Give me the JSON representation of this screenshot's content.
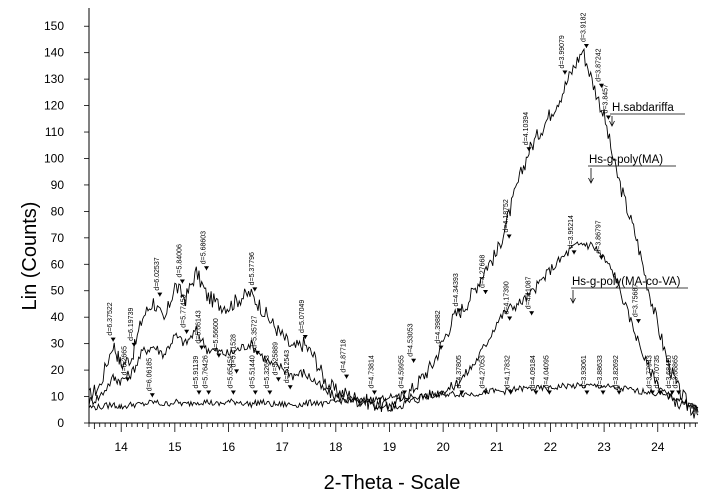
{
  "chart_data": {
    "type": "line",
    "xlabel": "2-Theta - Scale",
    "ylabel": "Lin (Counts)",
    "xlim": [
      13.4,
      24.75
    ],
    "ylim": [
      0,
      155
    ],
    "x_ticks": [
      14,
      15,
      16,
      17,
      18,
      19,
      20,
      21,
      22,
      23,
      24
    ],
    "y_ticks": [
      0,
      10,
      20,
      30,
      40,
      50,
      60,
      70,
      80,
      90,
      100,
      110,
      120,
      130,
      140,
      150
    ],
    "series": [
      {
        "name": "H.sabdariffa",
        "color": "#000000",
        "x": [
          13.4,
          13.6,
          13.85,
          14.0,
          14.2,
          14.4,
          14.6,
          14.8,
          15.0,
          15.2,
          15.4,
          15.6,
          15.8,
          16.0,
          16.2,
          16.4,
          16.6,
          16.8,
          17.0,
          17.2,
          17.4,
          17.6,
          17.8,
          18.0,
          18.2,
          18.4,
          18.6,
          18.8,
          19.0,
          19.2,
          19.4,
          19.6,
          19.8,
          20.0,
          20.2,
          20.4,
          20.6,
          20.8,
          21.0,
          21.2,
          21.4,
          21.6,
          21.8,
          22.0,
          22.2,
          22.4,
          22.6,
          22.8,
          23.0,
          23.2,
          23.4,
          23.6,
          23.8,
          24.0,
          24.2,
          24.4,
          24.6,
          24.75
        ],
        "y": [
          10,
          14,
          30,
          22,
          25,
          40,
          46,
          38,
          52,
          47,
          57,
          48,
          45,
          44,
          47,
          49,
          44,
          38,
          33,
          28,
          30,
          25,
          16,
          12,
          11,
          9,
          8,
          7,
          6,
          9,
          12,
          17,
          22,
          31,
          40,
          44,
          51,
          59,
          64,
          77,
          91,
          103,
          110,
          117,
          124,
          133,
          141,
          128,
          116,
          97,
          83,
          70,
          53,
          37,
          22,
          12,
          6,
          3
        ]
      },
      {
        "name": "Hs-g-poly(MA)",
        "color": "#000000",
        "x": [
          13.4,
          13.6,
          13.85,
          14.0,
          14.2,
          14.4,
          14.6,
          14.8,
          15.0,
          15.2,
          15.4,
          15.6,
          15.8,
          16.0,
          16.2,
          16.4,
          16.6,
          16.8,
          17.0,
          17.2,
          17.4,
          17.6,
          17.8,
          18.0,
          18.2,
          18.4,
          18.6,
          18.8,
          19.0,
          19.2,
          19.4,
          19.6,
          19.8,
          20.0,
          20.2,
          20.4,
          20.6,
          20.8,
          21.0,
          21.2,
          21.4,
          21.6,
          21.8,
          22.0,
          22.2,
          22.4,
          22.6,
          22.8,
          23.0,
          23.2,
          23.4,
          23.6,
          23.8,
          24.0,
          24.2,
          24.4,
          24.6,
          24.75
        ],
        "y": [
          8,
          10,
          17,
          16,
          19,
          27,
          29,
          26,
          33,
          30,
          35,
          28,
          27,
          26,
          28,
          30,
          26,
          22,
          21,
          18,
          19,
          16,
          12,
          10,
          9,
          8,
          7,
          7,
          6,
          7,
          8,
          10,
          11,
          12,
          14,
          18,
          23,
          30,
          38,
          43,
          45,
          48,
          53,
          58,
          62,
          66,
          68,
          67,
          62,
          56,
          44,
          33,
          22,
          15,
          10,
          7,
          6,
          4
        ]
      },
      {
        "name": "Hs-g-poly(MA-co-VA)",
        "color": "#000000",
        "x": [
          13.4,
          13.6,
          13.85,
          14.0,
          14.2,
          14.4,
          14.6,
          14.8,
          15.0,
          15.2,
          15.4,
          15.6,
          15.8,
          16.0,
          16.2,
          16.4,
          16.6,
          16.8,
          17.0,
          17.2,
          17.4,
          17.6,
          17.8,
          18.0,
          18.2,
          18.4,
          18.6,
          18.8,
          19.0,
          19.2,
          19.4,
          19.6,
          19.8,
          20.0,
          20.2,
          20.4,
          20.6,
          20.8,
          21.0,
          21.2,
          21.4,
          21.6,
          21.8,
          22.0,
          22.2,
          22.4,
          22.6,
          22.8,
          23.0,
          23.2,
          23.4,
          23.6,
          23.8,
          24.0,
          24.2,
          24.4,
          24.6,
          24.75
        ],
        "y": [
          6,
          6,
          7,
          6,
          7,
          7,
          8,
          7,
          8,
          7,
          8,
          8,
          7,
          8,
          8,
          7,
          8,
          7,
          7,
          7,
          7,
          8,
          7,
          8,
          9,
          8,
          9,
          9,
          10,
          9,
          10,
          10,
          10,
          11,
          11,
          11,
          11,
          12,
          12,
          12,
          13,
          13,
          13,
          13,
          14,
          14,
          14,
          14,
          14,
          13,
          13,
          12,
          12,
          11,
          10,
          9,
          7,
          6
        ]
      }
    ],
    "peaks_top": [
      {
        "x": 13.85,
        "y": 30,
        "label": "d=6.37522"
      },
      {
        "x": 14.24,
        "y": 28,
        "label": "d=6.19739"
      },
      {
        "x": 14.72,
        "y": 47,
        "label": "d=6.02537"
      },
      {
        "x": 15.14,
        "y": 52,
        "label": "d=5.84006"
      },
      {
        "x": 15.59,
        "y": 57,
        "label": "d=5.68603"
      },
      {
        "x": 16.49,
        "y": 49,
        "label": "d=5.37796"
      },
      {
        "x": 17.43,
        "y": 31,
        "label": "d=5.07049"
      },
      {
        "x": 20.3,
        "y": 41,
        "label": "d=4.34393"
      },
      {
        "x": 20.79,
        "y": 48,
        "label": "d=4.27668"
      },
      {
        "x": 21.23,
        "y": 69,
        "label": "d=4.18752"
      },
      {
        "x": 21.6,
        "y": 102,
        "label": "d=4.10394"
      },
      {
        "x": 22.27,
        "y": 131,
        "label": "d=3.99079"
      },
      {
        "x": 22.67,
        "y": 141,
        "label": "d=3.9182"
      },
      {
        "x": 22.95,
        "y": 126,
        "label": "d=3.87242"
      },
      {
        "x": 23.08,
        "y": 114,
        "label": "d=3.8457"
      }
    ],
    "peaks_mid": [
      {
        "x": 14.12,
        "y": 15,
        "label": "d=6.2665"
      },
      {
        "x": 15.22,
        "y": 33,
        "label": "d=5.77453"
      },
      {
        "x": 15.5,
        "y": 27,
        "label": "d=5.66143"
      },
      {
        "x": 15.82,
        "y": 24,
        "label": "d=5.56600"
      },
      {
        "x": 16.15,
        "y": 18,
        "label": "d=5.41528"
      },
      {
        "x": 16.54,
        "y": 25,
        "label": "d=5.35727"
      },
      {
        "x": 16.93,
        "y": 15,
        "label": "d=5.25889"
      },
      {
        "x": 17.15,
        "y": 12,
        "label": "d=5.12543"
      },
      {
        "x": 18.2,
        "y": 16,
        "label": "d=4.87718"
      },
      {
        "x": 19.96,
        "y": 27,
        "label": "d=4.39882"
      },
      {
        "x": 19.45,
        "y": 22,
        "label": "d=4.53053"
      },
      {
        "x": 21.24,
        "y": 38,
        "label": "d=4.17390"
      },
      {
        "x": 21.65,
        "y": 40,
        "label": "d=4.11087"
      },
      {
        "x": 22.44,
        "y": 63,
        "label": "d=3.95214"
      },
      {
        "x": 22.95,
        "y": 61,
        "label": "d=3.86797"
      },
      {
        "x": 23.64,
        "y": 37,
        "label": "d=3.75687"
      }
    ],
    "peaks_low": [
      {
        "x": 14.58,
        "y": 9,
        "label": "d=6.06185"
      },
      {
        "x": 15.45,
        "y": 10,
        "label": "d=5.91139"
      },
      {
        "x": 15.63,
        "y": 10,
        "label": "d=5.76426"
      },
      {
        "x": 16.09,
        "y": 10,
        "label": "d=5.65451"
      },
      {
        "x": 16.5,
        "y": 10,
        "label": "d=5.51440"
      },
      {
        "x": 16.77,
        "y": 10,
        "label": "d=5.32633"
      },
      {
        "x": 18.72,
        "y": 10,
        "label": "d=4.73814"
      },
      {
        "x": 19.28,
        "y": 10,
        "label": "d=4.59955"
      },
      {
        "x": 20.35,
        "y": 10,
        "label": "d=4.37805"
      },
      {
        "x": 20.79,
        "y": 10,
        "label": "d=4.27053"
      },
      {
        "x": 21.26,
        "y": 10,
        "label": "d=4.17832"
      },
      {
        "x": 21.73,
        "y": 10,
        "label": "d=4.09184"
      },
      {
        "x": 21.98,
        "y": 10,
        "label": "d=4.04095"
      },
      {
        "x": 22.68,
        "y": 10,
        "label": "d=3.93061"
      },
      {
        "x": 22.98,
        "y": 10,
        "label": "d=3.88633"
      },
      {
        "x": 23.28,
        "y": 10,
        "label": "d=3.82692"
      },
      {
        "x": 23.9,
        "y": 10,
        "label": "d=3.77943"
      },
      {
        "x": 24.04,
        "y": 10,
        "label": "d=3.70735"
      },
      {
        "x": 24.27,
        "y": 10,
        "label": "d=3.68420"
      },
      {
        "x": 24.39,
        "y": 10,
        "label": "d=3.66865"
      }
    ]
  }
}
